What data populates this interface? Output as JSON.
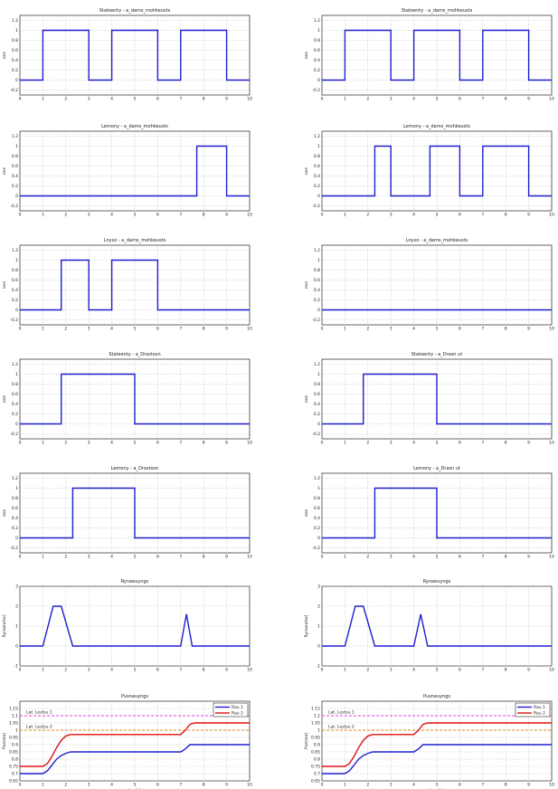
{
  "chart_data": [
    {
      "type": "line",
      "title": "Stateenty - a_dams_mohkeusts",
      "xlabel": "",
      "ylabel": "oos",
      "xlim": [
        0,
        10
      ],
      "ylim": [
        -0.3,
        1.3
      ],
      "yticks": [
        "-0.2",
        "0",
        "0.2",
        "0.4",
        "0.6",
        "0.8",
        "1",
        "1.2"
      ],
      "yticklabels": [
        "-0.2",
        "0",
        "0.2",
        "0.4",
        "0.6",
        "0.8",
        "1",
        "1.2"
      ],
      "xticks": [
        0,
        1,
        2,
        3,
        4,
        5,
        6,
        7,
        8,
        9,
        10
      ],
      "grid": true,
      "series": [
        {
          "color": "#1f1fd0",
          "x": [
            0,
            1,
            1,
            3,
            3,
            4,
            4,
            6,
            6,
            7,
            7,
            9,
            9,
            10
          ],
          "y": [
            0,
            0,
            1,
            1,
            0,
            0,
            1,
            1,
            0,
            0,
            1,
            1,
            0,
            0
          ]
        }
      ]
    },
    {
      "type": "line",
      "title": "Stateenty - a_dams_mohkeusts",
      "xlabel": "",
      "ylabel": "oos",
      "xlim": [
        0,
        10
      ],
      "ylim": [
        -0.3,
        1.3
      ],
      "yticks": [
        "-0.2",
        "0",
        "0.2",
        "0.4",
        "0.6",
        "0.8",
        "1",
        "1.2"
      ],
      "yticklabels": [
        "-0.2",
        "0",
        "0.2",
        "0.4",
        "0.6",
        "0.8",
        "1",
        "1.2"
      ],
      "xticks": [
        0,
        1,
        2,
        3,
        4,
        5,
        6,
        7,
        8,
        9,
        10
      ],
      "grid": true,
      "series": [
        {
          "color": "#1f1fd0",
          "x": [
            0,
            1,
            1,
            3,
            3,
            4,
            4,
            6,
            6,
            7,
            7,
            9,
            9,
            10
          ],
          "y": [
            0,
            0,
            1,
            1,
            0,
            0,
            1,
            1,
            0,
            0,
            1,
            1,
            0,
            0
          ]
        }
      ]
    },
    {
      "type": "line",
      "title": "Lemony - a_dams_mohkeusts",
      "xlabel": "",
      "ylabel": "oos",
      "xlim": [
        0,
        10
      ],
      "ylim": [
        -0.3,
        1.3
      ],
      "yticks": [
        "-0.2",
        "0",
        "0.2",
        "0.4",
        "0.6",
        "0.8",
        "1",
        "1.2"
      ],
      "yticklabels": [
        "-0.2",
        "0",
        "0.2",
        "0.4",
        "0.6",
        "0.8",
        "1",
        "1.2"
      ],
      "xticks": [
        0,
        1,
        2,
        3,
        4,
        5,
        6,
        7,
        8,
        9,
        10
      ],
      "grid": true,
      "series": [
        {
          "color": "#1f1fd0",
          "x": [
            0,
            7.7,
            7.7,
            9,
            9,
            10
          ],
          "y": [
            0,
            0,
            1,
            1,
            0,
            0
          ]
        }
      ]
    },
    {
      "type": "line",
      "title": "Lemony - a_dams_mohkeusts",
      "xlabel": "",
      "ylabel": "oos",
      "xlim": [
        0,
        10
      ],
      "ylim": [
        -0.3,
        1.3
      ],
      "yticks": [
        "-0.2",
        "0",
        "0.2",
        "0.4",
        "0.6",
        "0.8",
        "1",
        "1.2"
      ],
      "yticklabels": [
        "-0.2",
        "0",
        "0.2",
        "0.4",
        "0.6",
        "0.8",
        "1",
        "1.2"
      ],
      "xticks": [
        0,
        1,
        2,
        3,
        4,
        5,
        6,
        7,
        8,
        9,
        10
      ],
      "grid": true,
      "series": [
        {
          "color": "#1f1fd0",
          "x": [
            0,
            2.3,
            2.3,
            3,
            3,
            4.7,
            4.7,
            6,
            6,
            7,
            7,
            9,
            9,
            10
          ],
          "y": [
            0,
            0,
            1,
            1,
            0,
            0,
            1,
            1,
            0,
            0,
            1,
            1,
            0,
            0
          ]
        }
      ]
    },
    {
      "type": "line",
      "title": "Lnyso - a_dams_mohkeusts",
      "xlabel": "",
      "ylabel": "oos",
      "xlim": [
        0,
        10
      ],
      "ylim": [
        -0.3,
        1.3
      ],
      "yticks": [
        "-0.2",
        "0",
        "0.2",
        "0.4",
        "0.6",
        "0.8",
        "1",
        "1.2"
      ],
      "yticklabels": [
        "-0.2",
        "0",
        "0.2",
        "0.4",
        "0.6",
        "0.8",
        "1",
        "1.2"
      ],
      "xticks": [
        0,
        1,
        2,
        3,
        4,
        5,
        6,
        7,
        8,
        9,
        10
      ],
      "grid": true,
      "series": [
        {
          "color": "#1f1fd0",
          "x": [
            0,
            1.8,
            1.8,
            3,
            3,
            4,
            4,
            6,
            6,
            10
          ],
          "y": [
            0,
            0,
            1,
            1,
            0,
            0,
            1,
            1,
            0,
            0
          ]
        }
      ]
    },
    {
      "type": "line",
      "title": "Lnyso - a_dams_mohkeusts",
      "xlabel": "",
      "ylabel": "oos",
      "xlim": [
        0,
        10
      ],
      "ylim": [
        -0.3,
        1.3
      ],
      "yticks": [
        "-0.2",
        "0",
        "0.2",
        "0.4",
        "0.6",
        "0.8",
        "1",
        "1.2"
      ],
      "yticklabels": [
        "-0.2",
        "0",
        "0.2",
        "0.4",
        "0.6",
        "0.8",
        "1",
        "1.2"
      ],
      "xticks": [
        0,
        1,
        2,
        3,
        4,
        5,
        6,
        7,
        8,
        9,
        10
      ],
      "grid": true,
      "series": [
        {
          "color": "#1f1fd0",
          "x": [
            0,
            10
          ],
          "y": [
            0,
            0
          ]
        }
      ]
    },
    {
      "type": "line",
      "title": "Stateenty - a_Drastson",
      "xlabel": "",
      "ylabel": "oos",
      "xlim": [
        0,
        10
      ],
      "ylim": [
        -0.3,
        1.3
      ],
      "yticks": [
        "-0.2",
        "0",
        "0.2",
        "0.4",
        "0.6",
        "0.8",
        "1",
        "1.2"
      ],
      "yticklabels": [
        "-0.2",
        "0",
        "0.2",
        "0.4",
        "0.6",
        "0.8",
        "1",
        "1.2"
      ],
      "xticks": [
        0,
        1,
        2,
        3,
        4,
        5,
        6,
        7,
        8,
        9,
        10
      ],
      "grid": true,
      "series": [
        {
          "color": "#1f1fd0",
          "x": [
            0,
            1.8,
            1.8,
            5,
            5,
            10
          ],
          "y": [
            0,
            0,
            1,
            1,
            0,
            0
          ]
        }
      ]
    },
    {
      "type": "line",
      "title": "Stateenty - a_Drasn ut",
      "xlabel": "",
      "ylabel": "oos",
      "xlim": [
        0,
        10
      ],
      "ylim": [
        -0.3,
        1.3
      ],
      "yticks": [
        "-0.2",
        "0",
        "0.2",
        "0.4",
        "0.6",
        "0.8",
        "1",
        "1.2"
      ],
      "yticklabels": [
        "-0.2",
        "0",
        "0.2",
        "0.4",
        "0.6",
        "0.8",
        "1",
        "1.2"
      ],
      "xticks": [
        0,
        1,
        2,
        3,
        4,
        5,
        6,
        7,
        8,
        9,
        10
      ],
      "grid": true,
      "series": [
        {
          "color": "#1f1fd0",
          "x": [
            0,
            1.8,
            1.8,
            5,
            5,
            10
          ],
          "y": [
            0,
            0,
            1,
            1,
            0,
            0
          ]
        }
      ]
    },
    {
      "type": "line",
      "title": "Lemony - a_Drastson",
      "xlabel": "",
      "ylabel": "oos",
      "xlim": [
        0,
        10
      ],
      "ylim": [
        -0.3,
        1.3
      ],
      "yticks": [
        "-0.2",
        "0",
        "0.2",
        "0.4",
        "0.6",
        "0.8",
        "1",
        "1.2"
      ],
      "yticklabels": [
        "-0.2",
        "0",
        "0.2",
        "0.4",
        "0.6",
        "0.8",
        "1",
        "1.2"
      ],
      "xticks": [
        0,
        1,
        2,
        3,
        4,
        5,
        6,
        7,
        8,
        9,
        10
      ],
      "grid": true,
      "series": [
        {
          "color": "#1f1fd0",
          "x": [
            0,
            2.3,
            2.3,
            5,
            5,
            10
          ],
          "y": [
            0,
            0,
            1,
            1,
            0,
            0
          ]
        }
      ]
    },
    {
      "type": "line",
      "title": "Lemony - a_Drasn ut",
      "xlabel": "",
      "ylabel": "oos",
      "xlim": [
        0,
        10
      ],
      "ylim": [
        -0.3,
        1.3
      ],
      "yticks": [
        "-0.2",
        "0",
        "0.2",
        "0.4",
        "0.6",
        "0.8",
        "1",
        "1.2"
      ],
      "yticklabels": [
        "-0.2",
        "0",
        "0.2",
        "0.4",
        "0.6",
        "0.8",
        "1",
        "1.2"
      ],
      "xticks": [
        0,
        1,
        2,
        3,
        4,
        5,
        6,
        7,
        8,
        9,
        10
      ],
      "grid": true,
      "series": [
        {
          "color": "#1f1fd0",
          "x": [
            0,
            2.3,
            2.3,
            5,
            5,
            10
          ],
          "y": [
            0,
            0,
            1,
            1,
            0,
            0
          ]
        }
      ]
    },
    {
      "type": "line",
      "title": "Rynaeuyngs",
      "xlabel": "",
      "ylabel": "Rynaeulsa]",
      "xlim": [
        0,
        10
      ],
      "ylim": [
        -1,
        3
      ],
      "yticks": [
        "-1",
        "0",
        "1",
        "2",
        "3"
      ],
      "yticklabels": [
        "-1",
        "0",
        "1",
        "2",
        "3"
      ],
      "xticks": [
        0,
        1,
        2,
        3,
        4,
        5,
        6,
        7,
        8,
        9,
        10
      ],
      "grid": true,
      "series": [
        {
          "color": "#1f1fd0",
          "x": [
            0,
            1,
            1.45,
            1.8,
            2.3,
            7,
            7.25,
            7.5,
            10
          ],
          "y": [
            0,
            0,
            2,
            2,
            0,
            0,
            1.6,
            0,
            0
          ]
        }
      ]
    },
    {
      "type": "line",
      "title": "Rynaeuyngs",
      "xlabel": "",
      "ylabel": "Rynaeulsa]",
      "xlim": [
        0,
        10
      ],
      "ylim": [
        -1,
        3
      ],
      "yticks": [
        "-1",
        "0",
        "1",
        "2",
        "3"
      ],
      "yticklabels": [
        "-1",
        "0",
        "1",
        "2",
        "3"
      ],
      "xticks": [
        0,
        1,
        2,
        3,
        4,
        5,
        6,
        7,
        8,
        9,
        10
      ],
      "grid": true,
      "series": [
        {
          "color": "#1f1fd0",
          "x": [
            0,
            1,
            1.45,
            1.8,
            2.3,
            4,
            4.3,
            4.6,
            10
          ],
          "y": [
            0,
            0,
            2,
            2,
            0,
            0,
            1.6,
            0,
            0
          ]
        }
      ]
    },
    {
      "type": "line",
      "title": "Pusneuyngs",
      "xlabel": "Lse[s]",
      "ylabel": "Pusnea]",
      "xlim": [
        0,
        10
      ],
      "ylim": [
        0.65,
        1.2
      ],
      "yticks": [
        "0.65",
        "0.7",
        "0.75",
        "0.8",
        "0.85",
        "0.9",
        "0.95",
        "1",
        "1.05",
        "1.1",
        "1.15"
      ],
      "yticklabels": [
        "0.65",
        "0.7",
        "0.75",
        "0.8",
        "0.85",
        "0.9",
        "0.95",
        "1",
        "1.05",
        "1.1",
        "1.15"
      ],
      "xticks": [
        0,
        1,
        2,
        3,
        4,
        5,
        6,
        7,
        8,
        9,
        10
      ],
      "grid": true,
      "legend": "top-right",
      "legend_labels": [
        "Rau 1",
        "Rau 2"
      ],
      "annotations": [
        {
          "text": "Lat. Lestsu 1",
          "x": 0.2,
          "y": 1.1
        },
        {
          "text": "Lat. Lestsu 2",
          "x": 0.2,
          "y": 1.0
        }
      ],
      "hlines": [
        {
          "y": 1.1,
          "color": "#e040e0"
        },
        {
          "y": 1.0,
          "color": "#e08a20"
        }
      ],
      "series": [
        {
          "name": "Rau 1",
          "color": "#1f1fd0",
          "x": [
            0,
            1,
            1.2,
            1.4,
            1.6,
            1.8,
            2,
            2.2,
            7,
            7.2,
            7.4,
            10
          ],
          "y": [
            0.7,
            0.7,
            0.72,
            0.76,
            0.8,
            0.825,
            0.84,
            0.85,
            0.85,
            0.87,
            0.9,
            0.9
          ]
        },
        {
          "name": "Rau 2",
          "color": "#e01010",
          "x": [
            0,
            1,
            1.2,
            1.4,
            1.6,
            1.8,
            2,
            2.2,
            7,
            7.2,
            7.4,
            7.6,
            10
          ],
          "y": [
            0.75,
            0.75,
            0.77,
            0.82,
            0.88,
            0.93,
            0.96,
            0.97,
            0.97,
            1.0,
            1.04,
            1.05,
            1.05
          ]
        }
      ]
    },
    {
      "type": "line",
      "title": "Pusneuyngs",
      "xlabel": "Lse[s]",
      "ylabel": "Pusnea]",
      "xlim": [
        0,
        10
      ],
      "ylim": [
        0.65,
        1.2
      ],
      "yticks": [
        "0.65",
        "0.7",
        "0.75",
        "0.8",
        "0.85",
        "0.9",
        "0.95",
        "1",
        "1.05",
        "1.1",
        "1.15"
      ],
      "yticklabels": [
        "0.65",
        "0.7",
        "0.75",
        "0.8",
        "0.85",
        "0.9",
        "0.95",
        "1",
        "1.05",
        "1.1",
        "1.15"
      ],
      "xticks": [
        0,
        1,
        2,
        3,
        4,
        5,
        6,
        7,
        8,
        9,
        10
      ],
      "grid": true,
      "legend": "top-right",
      "legend_labels": [
        "Rau 1",
        "Rau 2"
      ],
      "annotations": [
        {
          "text": "Lat. Lestsu 1",
          "x": 0.2,
          "y": 1.1
        },
        {
          "text": "Lat. Lestsu 2",
          "x": 0.2,
          "y": 1.0
        }
      ],
      "hlines": [
        {
          "y": 1.1,
          "color": "#e040e0"
        },
        {
          "y": 1.0,
          "color": "#e08a20"
        }
      ],
      "series": [
        {
          "name": "Rau 1",
          "color": "#1f1fd0",
          "x": [
            0,
            1,
            1.2,
            1.4,
            1.6,
            1.8,
            2,
            2.2,
            4,
            4.2,
            4.4,
            10
          ],
          "y": [
            0.7,
            0.7,
            0.72,
            0.76,
            0.8,
            0.825,
            0.84,
            0.85,
            0.85,
            0.87,
            0.9,
            0.9
          ]
        },
        {
          "name": "Rau 2",
          "color": "#e01010",
          "x": [
            0,
            1,
            1.2,
            1.4,
            1.6,
            1.8,
            2,
            2.2,
            4,
            4.2,
            4.4,
            4.6,
            10
          ],
          "y": [
            0.75,
            0.75,
            0.77,
            0.82,
            0.88,
            0.93,
            0.96,
            0.97,
            0.97,
            1.0,
            1.04,
            1.05,
            1.05
          ]
        }
      ]
    }
  ]
}
